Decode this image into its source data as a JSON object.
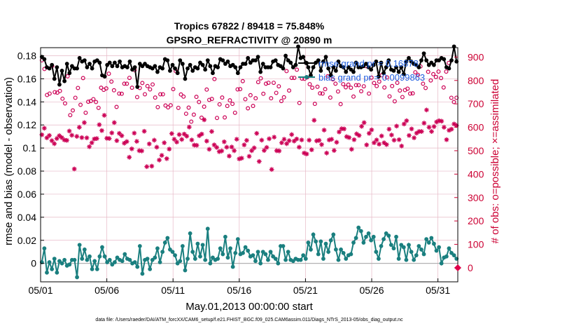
{
  "chart_data": {
    "type": "line",
    "title": "Tropics 67822 / 89418 = 75.848%",
    "subtitle": "GPSRO_REFRACTIVITY @ 20890 m",
    "xlabel": "May.01,2013 00:00:00 start",
    "ylabel_left": "rmse and bias (model - observation)",
    "ylabel_right": "# of obs: o=possible; ×=assimilated",
    "footer": "data file: /Users/raeder/DAI/ATM_forcXX/CAM6_setup/f.e21.FHIST_BGC.f09_025.CAM6assim.011/Diags_NTrS_2013-05/obs_diag_output.nc",
    "xlim": [
      0,
      31.5
    ],
    "ylim_left": [
      -0.016,
      0.187
    ],
    "ylim_right": [
      -60,
      940
    ],
    "grid": true,
    "x_ticks": [
      {
        "x": 0,
        "label": "05/01"
      },
      {
        "x": 5,
        "label": "05/06"
      },
      {
        "x": 10,
        "label": "05/11"
      },
      {
        "x": 15,
        "label": "05/16"
      },
      {
        "x": 20,
        "label": "05/21"
      },
      {
        "x": 25,
        "label": "05/26"
      },
      {
        "x": 30,
        "label": "05/31"
      }
    ],
    "y_ticks_left": [
      "0",
      "0.02",
      "0.04",
      "0.06",
      "0.08",
      "0.1",
      "0.12",
      "0.14",
      "0.16",
      "0.18"
    ],
    "y_ticks_left_values": [
      0,
      0.02,
      0.04,
      0.06,
      0.08,
      0.1,
      0.12,
      0.14,
      0.16,
      0.18
    ],
    "y_ticks_right": [
      "0",
      "100",
      "200",
      "300",
      "400",
      "500",
      "600",
      "700",
      "800",
      "900"
    ],
    "y_ticks_right_values": [
      0,
      100,
      200,
      300,
      400,
      500,
      600,
      700,
      800,
      900
    ],
    "legend": [
      {
        "label": "rmse grand pr = 0.16878",
        "color": "#000000"
      },
      {
        "label": "bias grand pr = 0.0099863",
        "color": "#1a7f7f"
      }
    ],
    "series": [
      {
        "name": "rmse",
        "axis": "left",
        "color": "#000000",
        "values": [
          0.179,
          0.177,
          0.17,
          0.169,
          0.172,
          0.16,
          0.17,
          0.155,
          0.167,
          0.158,
          0.173,
          0.165,
          0.171,
          0.169,
          0.169,
          0.178,
          0.175,
          0.176,
          0.17,
          0.173,
          0.169,
          0.175,
          0.176,
          0.174,
          0.163,
          0.162,
          0.172,
          0.174,
          0.171,
          0.174,
          0.171,
          0.175,
          0.17,
          0.171,
          0.17,
          0.175,
          0.168,
          0.17,
          0.153,
          0.173,
          0.171,
          0.173,
          0.171,
          0.17,
          0.169,
          0.171,
          0.166,
          0.17,
          0.169,
          0.177,
          0.176,
          0.167,
          0.172,
          0.169,
          0.165,
          0.176,
          0.173,
          0.16,
          0.169,
          0.172,
          0.167,
          0.17,
          0.169,
          0.174,
          0.172,
          0.168,
          0.176,
          0.171,
          0.165,
          0.171,
          0.17,
          0.177,
          0.176,
          0.173,
          0.175,
          0.171,
          0.172,
          0.17,
          0.165,
          0.17,
          0.173,
          0.173,
          0.178,
          0.174,
          0.176,
          0.176,
          0.179,
          0.166,
          0.173,
          0.17,
          0.17,
          0.17,
          0.175,
          0.176,
          0.172,
          0.171,
          0.169,
          0.18,
          0.176,
          0.174,
          0.17,
          0.172,
          0.188,
          0.178,
          0.179,
          0.174,
          0.17,
          0.163,
          0.17,
          0.174,
          0.176,
          0.167,
          0.175,
          0.179,
          0.169,
          0.163,
          0.17,
          0.167,
          0.175,
          0.171,
          0.17,
          0.166,
          0.17,
          0.168,
          0.166,
          0.174,
          0.17,
          0.17,
          0.171,
          0.173,
          0.17,
          0.168,
          0.172,
          0.175,
          0.162,
          0.174,
          0.165,
          0.17,
          0.176,
          0.168,
          0.167,
          0.17,
          0.166,
          0.17,
          0.164,
          0.175,
          0.178,
          0.175,
          0.173,
          0.172,
          0.17,
          0.176,
          0.182,
          0.176,
          0.172,
          0.174,
          0.172,
          0.176,
          0.176,
          0.178,
          0.177,
          0.17,
          0.169,
          0.176,
          0.188,
          0.175
        ]
      },
      {
        "name": "bias",
        "axis": "left",
        "color": "#1a7f7f",
        "values": [
          0.001,
          0.013,
          -0.008,
          0.001,
          -0.005,
          0.004,
          -0.008,
          0.002,
          0.0,
          0.003,
          -0.002,
          -0.001,
          0.003,
          0.003,
          -0.012,
          0.016,
          0.004,
          0.012,
          0.003,
          0.006,
          -0.005,
          0.002,
          -0.005,
          0.006,
          0.014,
          0.006,
          0.001,
          0.003,
          -0.001,
          0.001,
          0.005,
          0.003,
          0.002,
          0.008,
          0.004,
          0.003,
          0.0,
          0.001,
          -0.003,
          0.015,
          -0.009,
          0.003,
          0.004,
          -0.005,
          0.003,
          0.005,
          0.013,
          0.001,
          0.01,
          0.018,
          0.022,
          0.012,
          0.01,
          0.007,
          0.0,
          0.002,
          0.015,
          -0.006,
          0.004,
          0.026,
          0.01,
          0.004,
          0.017,
          0.006,
          0.016,
          0.003,
          0.03,
          0.0,
          0.005,
          0.003,
          0.004,
          0.013,
          0.008,
          0.023,
          0.005,
          0.013,
          -0.003,
          0.009,
          0.021,
          0.008,
          0.009,
          0.014,
          0.011,
          0.006,
          0.007,
          0.002,
          0.01,
          0.0,
          0.01,
          0.008,
          0.003,
          0.01,
          0.006,
          0.004,
          0.0,
          0.015,
          0.015,
          0.003,
          0.01,
          0.003,
          0.002,
          0.004,
          0.003,
          0.003,
          0.007,
          0.004,
          0.018,
          0.012,
          0.025,
          0.019,
          0.008,
          0.019,
          0.004,
          0.017,
          0.01,
          0.02,
          0.025,
          0.012,
          0.003,
          0.012,
          0.009,
          0.004,
          0.007,
          0.008,
          0.018,
          0.022,
          0.031,
          0.028,
          0.018,
          0.023,
          0.026,
          0.02,
          0.023,
          0.01,
          0.004,
          0.015,
          0.021,
          0.026,
          0.024,
          0.016,
          0.013,
          0.023,
          0.004,
          0.016,
          0.014,
          0.003,
          0.016,
          0.01,
          0.003,
          0.007,
          0.015,
          0.012,
          0.008,
          0.021,
          0.018,
          0.022,
          0.017,
          0.011,
          0.014,
          0.0,
          0.005,
          0.006,
          0.013,
          0.009,
          0.007,
          0.004
        ]
      },
      {
        "name": "possible",
        "axis": "right",
        "marker": "o",
        "color": "#cc0055",
        "values": [
          886,
          849,
          738,
          744,
          862,
          750,
          748,
          755,
          722,
          702,
          818,
          652,
          672,
          726,
          768,
          696,
          810,
          662,
          709,
          712,
          720,
          708,
          683,
          769,
          760,
          766,
          829,
          795,
          758,
          687,
          744,
          743,
          786,
          786,
          811,
          769,
          844,
          729,
          768,
          789,
          741,
          776,
          762,
          783,
          727,
          686,
          741,
          741,
          693,
          685,
          694,
          763,
          840,
          683,
          740,
          731,
          658,
          684,
          624,
          654,
          730,
          708,
          641,
          688,
          761,
          717,
          721,
          806,
          640,
          698,
          727,
          642,
          691,
          715,
          700,
          662,
          762,
          763,
          797,
          720,
          681,
          737,
          691,
          724,
          793,
          809,
          743,
          786,
          790,
          724,
          790,
          747,
          775,
          712,
          728,
          840,
          757,
          811,
          811,
          846,
          704,
          808,
          807,
          813,
          784,
          769,
          700,
          773,
          745,
          744,
          763,
          818,
          727,
          805,
          786,
          753,
          699,
          784,
          771,
          782,
          769,
          731,
          780,
          780,
          754,
          775,
          861,
          744,
          812,
          789,
          776,
          795,
          822,
          770,
          813,
          732,
          776,
          711,
          790,
          757,
          729,
          759,
          765,
          744,
          745,
          835,
          824,
          860,
          786,
          768,
          837,
          800,
          827,
          815,
          838,
          810,
          770,
          838,
          875,
          726,
          708,
          726
        ]
      },
      {
        "name": "assimilated",
        "axis": "right",
        "marker": "x",
        "color": "#cc0055",
        "values": [
          568,
          596,
          555,
          565,
          543,
          530,
          552,
          564,
          556,
          546,
          544,
          584,
          566,
          422,
          561,
          600,
          556,
          620,
          555,
          517,
          534,
          550,
          552,
          611,
          586,
          651,
          553,
          552,
          576,
          620,
          543,
          574,
          564,
          532,
          539,
          472,
          508,
          575,
          540,
          500,
          499,
          583,
          432,
          529,
          434,
          545,
          515,
          460,
          480,
          534,
          466,
          507,
          573,
          549,
          537,
          569,
          548,
          571,
          562,
          601,
          546,
          524,
          523,
          564,
          571,
          632,
          541,
          506,
          582,
          525,
          514,
          496,
          499,
          538,
          515,
          477,
          516,
          500,
          549,
          465,
          468,
          525,
          544,
          476,
          500,
          512,
          574,
          454,
          545,
          501,
          514,
          551,
          420,
          558,
          500,
          499,
          534,
          549,
          530,
          543,
          569,
          541,
          550,
          515,
          546,
          490,
          486,
          545,
          504,
          630,
          542,
          544,
          526,
          588,
          490,
          546,
          549,
          501,
          536,
          580,
          594,
          593,
          560,
          556,
          506,
          547,
          572,
          565,
          604,
          620,
          525,
          574,
          589,
          534,
          546,
          528,
          563,
          534,
          526,
          592,
          567,
          545,
          605,
          547,
          520,
          614,
          628,
          565,
          593,
          555,
          575,
          582,
          582,
          618,
          674,
          600,
          582,
          603,
          623,
          628,
          626,
          600,
          547,
          587,
          592,
          614,
          608
        ]
      }
    ]
  }
}
